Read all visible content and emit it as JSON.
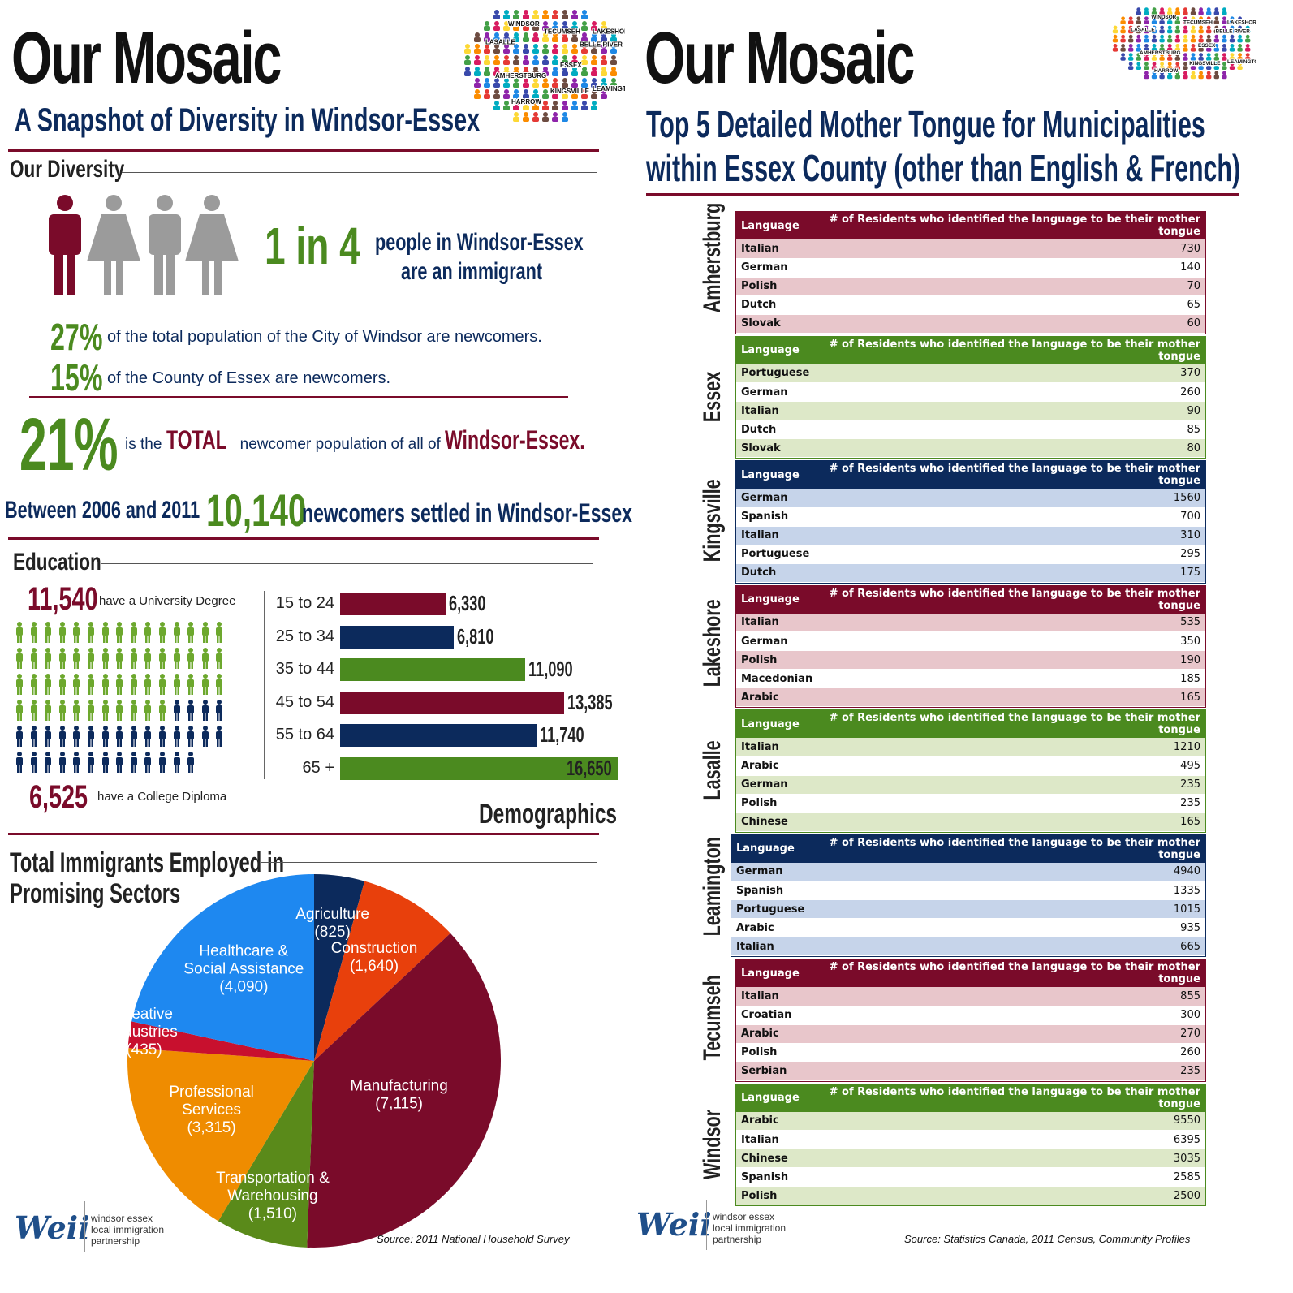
{
  "left": {
    "title": "Our Mosaic",
    "subtitle": "A Snapshot of Diversity in Windsor-Essex",
    "cloud_words": [
      "Windsor",
      "Tecumseh",
      "LaSalle",
      "Lakeshore",
      "Belle River",
      "Essex",
      "Amherstburg",
      "Kingsville",
      "Leamington",
      "Harrow"
    ],
    "diversity": {
      "heading": "Our Diversity",
      "ratio": "1 in 4",
      "ratio_text_1": "people in Windsor-Essex",
      "ratio_text_2": "are an immigrant",
      "city_pct": "27%",
      "city_text": "of the total population of the City of Windsor are newcomers.",
      "county_pct": "15%",
      "county_text": "of the County of Essex are newcomers.",
      "total_pct": "21%",
      "total_text_1": "is the",
      "total_text_2": "TOTAL",
      "total_text_3": "newcomer population of all of",
      "total_text_4": "Windsor-Essex.",
      "between": "Between 2006 and 2011",
      "newcomers": "10,140",
      "newcomers_text": "newcomers settled in Windsor-Essex"
    },
    "education": {
      "heading": "Education",
      "university_count": "11,540",
      "university_text": "have a University Degree",
      "college_count": "6,525",
      "college_text": "have a College Diploma"
    },
    "demographics_heading": "Demographics",
    "age_chart": {
      "type": "bar",
      "categories": [
        "15 to 24",
        "25 to 34",
        "35 to 44",
        "45 to 54",
        "55 to 64",
        "65 +"
      ],
      "values": [
        6330,
        6810,
        11090,
        13385,
        11740,
        16650
      ],
      "labels": [
        "6,330",
        "6,810",
        "11,090",
        "13,385",
        "11,740",
        "16,650"
      ],
      "colors": [
        "#7a0b2a",
        "#0c2a5c",
        "#4b8a1f",
        "#7a0b2a",
        "#0c2a5c",
        "#4b8a1f"
      ],
      "max": 16650
    },
    "sectors_heading_1": "Total Immigrants Employed in",
    "sectors_heading_2": "Promising Sectors",
    "chart_data": {
      "type": "pie",
      "slices": [
        {
          "label": "Agriculture",
          "value_label": "(825)",
          "value": 825,
          "color": "#0c2a5c"
        },
        {
          "label": "Construction",
          "value_label": "(1,640)",
          "value": 1640,
          "color": "#e8400c"
        },
        {
          "label": "Manufacturing",
          "value_label": "(7,115)",
          "value": 7115,
          "color": "#7a0b2a"
        },
        {
          "label": "Transportation & Warehousing",
          "value_label": "(1,510)",
          "value": 1510,
          "color": "#5a8a1a"
        },
        {
          "label": "Professional Services",
          "value_label": "(3,315)",
          "value": 3315,
          "color": "#ef8c00"
        },
        {
          "label": "Creative Industries",
          "value_label": "(435)",
          "value": 435,
          "color": "#c8102e"
        },
        {
          "label": "Healthcare & Social Assistance",
          "value_label": "(4,090)",
          "value": 4090,
          "color": "#1e88f0"
        }
      ]
    },
    "logo": "Weii",
    "logo_text": [
      "windsor essex",
      "local immigration",
      "partnership"
    ],
    "source": "Source: 2011 National Household Survey"
  },
  "right": {
    "title": "Our Mosaic",
    "subtitle_1": "Top 5 Detailed Mother Tongue for Municipalities",
    "subtitle_2": "within Essex County (other than English & French)",
    "col_language": "Language",
    "col_residents": "# of Residents who identified the language to be their mother tongue",
    "municipalities": [
      {
        "name": "Amherstburg",
        "theme": "maroon",
        "rows": [
          [
            "Italian",
            "730"
          ],
          [
            "German",
            "140"
          ],
          [
            "Polish",
            "70"
          ],
          [
            "Dutch",
            "65"
          ],
          [
            "Slovak",
            "60"
          ]
        ]
      },
      {
        "name": "Essex",
        "theme": "green",
        "rows": [
          [
            "Portuguese",
            "370"
          ],
          [
            "German",
            "260"
          ],
          [
            "Italian",
            "90"
          ],
          [
            "Dutch",
            "85"
          ],
          [
            "Slovak",
            "80"
          ]
        ]
      },
      {
        "name": "Kingsville",
        "theme": "navy",
        "rows": [
          [
            "German",
            "1560"
          ],
          [
            "Spanish",
            "700"
          ],
          [
            "Italian",
            "310"
          ],
          [
            "Portuguese",
            "295"
          ],
          [
            "Dutch",
            "175"
          ]
        ]
      },
      {
        "name": "Lakeshore",
        "theme": "maroon",
        "rows": [
          [
            "Italian",
            "535"
          ],
          [
            "German",
            "350"
          ],
          [
            "Polish",
            "190"
          ],
          [
            "Macedonian",
            "185"
          ],
          [
            "Arabic",
            "165"
          ]
        ]
      },
      {
        "name": "Lasalle",
        "theme": "green",
        "rows": [
          [
            "Italian",
            "1210"
          ],
          [
            "Arabic",
            "495"
          ],
          [
            "German",
            "235"
          ],
          [
            "Polish",
            "235"
          ],
          [
            "Chinese",
            "165"
          ]
        ]
      },
      {
        "name": "Leamington",
        "theme": "navy",
        "rows": [
          [
            "German",
            "4940"
          ],
          [
            "Spanish",
            "1335"
          ],
          [
            "Portuguese",
            "1015"
          ],
          [
            "Arabic",
            "935"
          ],
          [
            "Italian",
            "665"
          ]
        ]
      },
      {
        "name": "Tecumseh",
        "theme": "maroon",
        "rows": [
          [
            "Italian",
            "855"
          ],
          [
            "Croatian",
            "300"
          ],
          [
            "Arabic",
            "270"
          ],
          [
            "Polish",
            "260"
          ],
          [
            "Serbian",
            "235"
          ]
        ]
      },
      {
        "name": "Windsor",
        "theme": "green",
        "rows": [
          [
            "Arabic",
            "9550"
          ],
          [
            "Italian",
            "6395"
          ],
          [
            "Chinese",
            "3035"
          ],
          [
            "Spanish",
            "2585"
          ],
          [
            "Polish",
            "2500"
          ]
        ]
      }
    ],
    "themes": {
      "maroon": {
        "head": "#7a0b2a",
        "band": "#e8c6cb"
      },
      "green": {
        "head": "#4b8a1f",
        "band": "#dde8c8"
      },
      "navy": {
        "head": "#0c2a5c",
        "band": "#c6d4ea"
      }
    },
    "logo": "Weii",
    "logo_text": [
      "windsor essex",
      "local immigration",
      "partnership"
    ],
    "source": "Source: Statistics Canada, 2011 Census, Community Profiles"
  }
}
